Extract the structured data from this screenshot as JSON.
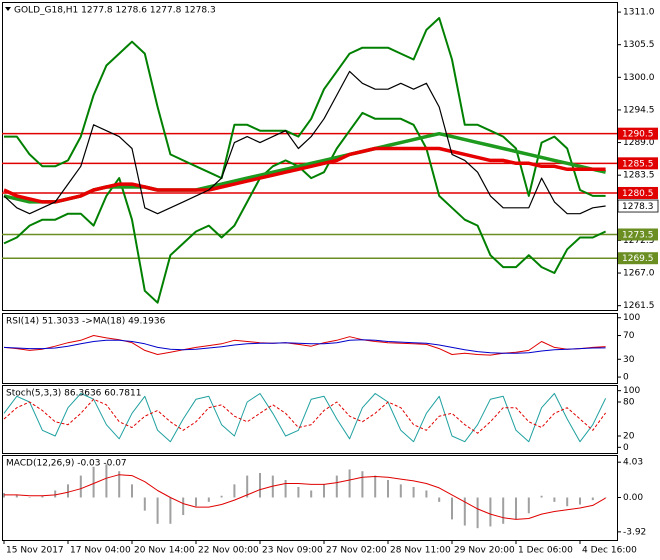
{
  "chart_data": [
    {
      "type": "line",
      "title": "GOLD_G18,H1  1277.8 1278.6 1277.8 1278.3",
      "categories": [
        "15 Nov 2017",
        null,
        null,
        null,
        null,
        "17 Nov 04:00",
        null,
        null,
        null,
        null,
        "20 Nov 14:00",
        null,
        null,
        null,
        null,
        "22 Nov 00:00",
        null,
        null,
        null,
        null,
        "23 Nov 09:00",
        null,
        null,
        null,
        null,
        "27 Nov 02:00",
        null,
        null,
        null,
        null,
        "28 Nov 11:00",
        null,
        null,
        null,
        null,
        "29 Nov 20:00",
        null,
        null,
        null,
        null,
        "1 Dec 06:00",
        null,
        null,
        null,
        null,
        "4 Dec 16:00",
        null,
        null
      ],
      "ylim": [
        1260.6,
        1312.7
      ],
      "yticks": [
        {
          "value": 1311.0,
          "label": "1311.0"
        },
        1305.5,
        {
          "value": 1300.0,
          "label": "1300.0"
        },
        1294.5,
        {
          "value": 1289.0,
          "label": "1289.0"
        },
        1283.5,
        {
          "value": 1278.0,
          "label": "1278.0"
        },
        1272.5,
        {
          "value": 1267.0,
          "label": "1267.0"
        },
        1261.5
      ],
      "series": [
        {
          "color": "#008000",
          "width": 2,
          "values": [
            1290,
            1290,
            1287,
            1285,
            1285,
            1286,
            1290,
            1297,
            1302,
            1304,
            1306,
            1304,
            1295,
            1287,
            1286,
            1285,
            1284,
            1283,
            1292,
            1292,
            1291,
            1291,
            1291,
            1290,
            1293,
            1298,
            1301,
            1304,
            1305,
            1305,
            1305,
            1304,
            1303,
            1308,
            1310,
            1303,
            1292,
            1292,
            1291,
            1290,
            1288,
            1280,
            1289,
            1290,
            1288,
            1281,
            1280,
            1280
          ]
        },
        {
          "color": "#008000",
          "width": 2,
          "values": [
            1272,
            1273,
            1275,
            1276,
            1276,
            1277,
            1277,
            1275,
            1280,
            1283,
            1276,
            1264,
            1262,
            1270,
            1272,
            1274,
            1275,
            1273,
            1275,
            1279,
            1283,
            1285,
            1286,
            1285,
            1283,
            1284,
            1288,
            1291,
            1294,
            1293,
            1293,
            1293,
            1292,
            1288,
            1280,
            1278,
            1276,
            1275,
            1270,
            1268,
            1268,
            1270,
            1268,
            1267,
            1271,
            1273,
            1273,
            1274
          ]
        },
        {
          "color": "#1e9a1e",
          "width": 3.5,
          "values": [
            1280,
            1279.5,
            1279,
            1279,
            1279,
            1279.5,
            1280,
            1281,
            1281.5,
            1281.5,
            1281.5,
            1281.5,
            1281,
            1281,
            1281,
            1281,
            1281.5,
            1282,
            1282.5,
            1283,
            1283.5,
            1284,
            1284.5,
            1285,
            1285.5,
            1286,
            1286.5,
            1287,
            1287.5,
            1288,
            1288.5,
            1289,
            1289.5,
            1290,
            1290.5,
            1290,
            1289.5,
            1289,
            1288.5,
            1288,
            1287.5,
            1287,
            1286.5,
            1286,
            1285.5,
            1285,
            1284.5,
            1284
          ]
        },
        {
          "color": "#e60000",
          "width": 3.5,
          "values": [
            1281,
            1280,
            1279.5,
            1279,
            1279,
            1279.5,
            1280,
            1281,
            1281.5,
            1282,
            1282,
            1281.5,
            1281,
            1281,
            1281,
            1281,
            1281,
            1281.5,
            1282,
            1282.5,
            1283,
            1283.5,
            1284,
            1284.5,
            1285,
            1285.5,
            1286,
            1287,
            1287.5,
            1288,
            1288,
            1288,
            1288,
            1288,
            1288,
            1287.5,
            1287,
            1286.5,
            1286,
            1286,
            1285.5,
            1285.5,
            1285,
            1285,
            1284.5,
            1284.5,
            1284.5,
            1284.5
          ]
        },
        {
          "color": "#000000",
          "width": 1.2,
          "values": [
            1280,
            1278,
            1277,
            1278,
            1279,
            1282,
            1285,
            1292,
            1291,
            1290,
            1288,
            1278,
            1277,
            1278,
            1279,
            1280,
            1281,
            1283,
            1289,
            1290,
            1289,
            1290,
            1291,
            1288,
            1290,
            1293,
            1297,
            1301,
            1299,
            1298,
            1298,
            1299,
            1298,
            1299,
            1295,
            1287,
            1286,
            1284,
            1280,
            1278,
            1278,
            1278,
            1283,
            1279,
            1277,
            1277,
            1278,
            1278.3
          ]
        }
      ],
      "levels": [
        {
          "value": 1290.5,
          "color": "#e00000"
        },
        {
          "value": 1285.5,
          "color": "#e00000"
        },
        {
          "value": 1280.5,
          "color": "#e00000"
        },
        {
          "value": 1273.5,
          "color": "#6b8e23"
        },
        {
          "value": 1269.5,
          "color": "#6b8e23"
        }
      ],
      "last": 1278.3
    },
    {
      "type": "line",
      "title": "RSI(14) 51.3033  ->MA(18) 49.1936",
      "ylim": [
        -10,
        108
      ],
      "yticks": [
        100,
        70,
        30,
        0
      ],
      "series": [
        {
          "color": "#e00000",
          "width": 1,
          "values": [
            50,
            48,
            45,
            47,
            52,
            58,
            62,
            70,
            66,
            63,
            58,
            45,
            38,
            42,
            46,
            50,
            53,
            56,
            62,
            60,
            58,
            57,
            58,
            55,
            52,
            58,
            62,
            68,
            63,
            60,
            58,
            57,
            56,
            55,
            48,
            38,
            40,
            38,
            37,
            40,
            42,
            45,
            60,
            50,
            47,
            48,
            50,
            51.3033
          ]
        },
        {
          "color": "#0000cc",
          "width": 1,
          "values": [
            50,
            49,
            48,
            48,
            49,
            52,
            56,
            60,
            62,
            62,
            60,
            56,
            50,
            47,
            46,
            47,
            49,
            51,
            54,
            56,
            57,
            57,
            58,
            57,
            56,
            56,
            58,
            62,
            63,
            62,
            60,
            59,
            58,
            57,
            54,
            50,
            46,
            43,
            41,
            40,
            40,
            41,
            44,
            46,
            47,
            48,
            49,
            49.1936
          ]
        }
      ]
    },
    {
      "type": "line",
      "title": "Stoch(5,3,3) 86.3636 60.7811",
      "ylim": [
        -10,
        110
      ],
      "yticks": [
        100,
        80,
        20,
        0
      ],
      "series": [
        {
          "color": "#20a0a0",
          "width": 1,
          "values": [
            60,
            90,
            80,
            30,
            20,
            70,
            95,
            85,
            40,
            15,
            60,
            90,
            30,
            10,
            50,
            85,
            90,
            40,
            20,
            80,
            95,
            60,
            20,
            30,
            85,
            90,
            50,
            15,
            70,
            95,
            80,
            30,
            10,
            60,
            90,
            20,
            10,
            40,
            85,
            90,
            30,
            10,
            70,
            95,
            50,
            10,
            40,
            86.3636
          ]
        },
        {
          "color": "#e00000",
          "width": 1,
          "dash": true,
          "values": [
            50,
            70,
            80,
            65,
            45,
            40,
            60,
            85,
            75,
            45,
            35,
            55,
            65,
            45,
            30,
            45,
            70,
            75,
            55,
            45,
            60,
            75,
            60,
            35,
            40,
            65,
            80,
            55,
            45,
            60,
            80,
            70,
            40,
            30,
            55,
            60,
            40,
            25,
            45,
            70,
            70,
            45,
            35,
            60,
            70,
            50,
            30,
            60.7811
          ]
        }
      ]
    },
    {
      "type": "line",
      "title": "MACD(12,26,9) -0.03 -0.07",
      "ylim": [
        -4.85,
        4.85
      ],
      "yticks": [
        4.03,
        {
          "value": 0,
          "label": "0.00"
        },
        -3.92
      ],
      "series": [
        {
          "color": "#a0a0a0",
          "kind": "bar",
          "values": [
            0.5,
            0.3,
            0,
            0.2,
            0.8,
            1.5,
            2.5,
            3.5,
            3.8,
            3.0,
            1.5,
            -1.5,
            -3.0,
            -3.0,
            -2.0,
            -1,
            -0.5,
            0.2,
            1.5,
            2.5,
            2.8,
            2.5,
            2.0,
            1.2,
            0.8,
            1.5,
            2.5,
            3.2,
            3.0,
            2.5,
            2.0,
            1.5,
            1.2,
            0.8,
            -0.5,
            -2.5,
            -3.2,
            -3.5,
            -3.3,
            -3.0,
            -2.5,
            -1.8,
            0.2,
            -0.5,
            -1.0,
            -0.8,
            -0.3,
            -0.03
          ]
        },
        {
          "color": "#e00000",
          "width": 1,
          "values": [
            0.3,
            0.3,
            0.2,
            0.2,
            0.3,
            0.6,
            1.0,
            1.6,
            2.2,
            2.6,
            2.5,
            1.8,
            0.8,
            0,
            -0.7,
            -1.1,
            -1.1,
            -0.8,
            -0.3,
            0.3,
            0.9,
            1.3,
            1.6,
            1.6,
            1.5,
            1.5,
            1.7,
            2.0,
            2.3,
            2.4,
            2.3,
            2.1,
            1.9,
            1.6,
            1.1,
            0.3,
            -0.5,
            -1.3,
            -1.9,
            -2.3,
            -2.5,
            -2.4,
            -1.9,
            -1.6,
            -1.4,
            -1.2,
            -0.9,
            -0.07
          ]
        }
      ]
    }
  ]
}
